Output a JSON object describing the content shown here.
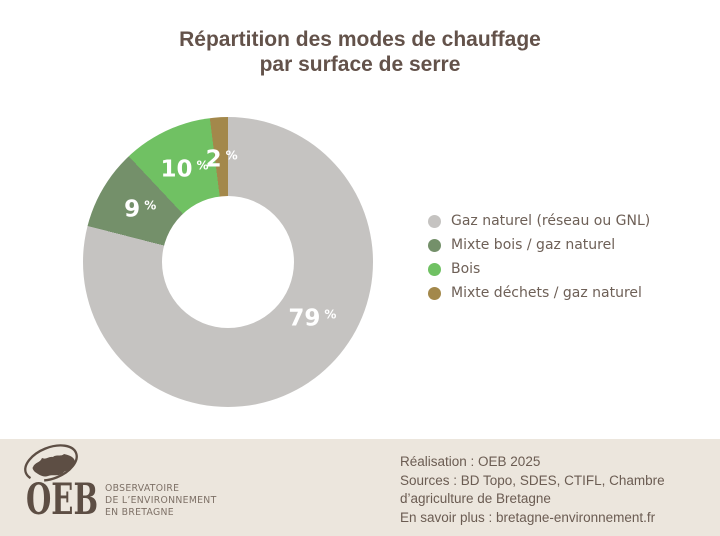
{
  "title": {
    "lines": [
      "Répartition des modes de chauffage",
      "par surface de serre"
    ]
  },
  "chart_data": {
    "type": "pie",
    "subtype": "donut",
    "title": "Répartition des modes de chauffage par surface de serre",
    "categories": [
      "Gaz naturel (réseau ou GNL)",
      "Mixte bois / gaz naturel",
      "Bois",
      "Mixte déchets / gaz naturel"
    ],
    "values": [
      79,
      9,
      10,
      2
    ],
    "unit": "%",
    "colors": [
      "#c5c3c1",
      "#74906a",
      "#70c163",
      "#a3884b"
    ],
    "start_angle_deg": 0,
    "direction": "clockwise",
    "legend_position": "right",
    "label_color": "#ffffff"
  },
  "footer": {
    "logo": {
      "acronym": "OEB",
      "org_lines": [
        "OBSERVATOIRE",
        "DE L’ENVIRONNEMENT",
        "EN BRETAGNE"
      ]
    },
    "credits": [
      "Réalisation : OEB 2025",
      "Sources : BD Topo, SDES, CTIFL, Chambre d’agriculture de Bretagne",
      "En savoir plus : bretagne-environnement.fr"
    ]
  }
}
